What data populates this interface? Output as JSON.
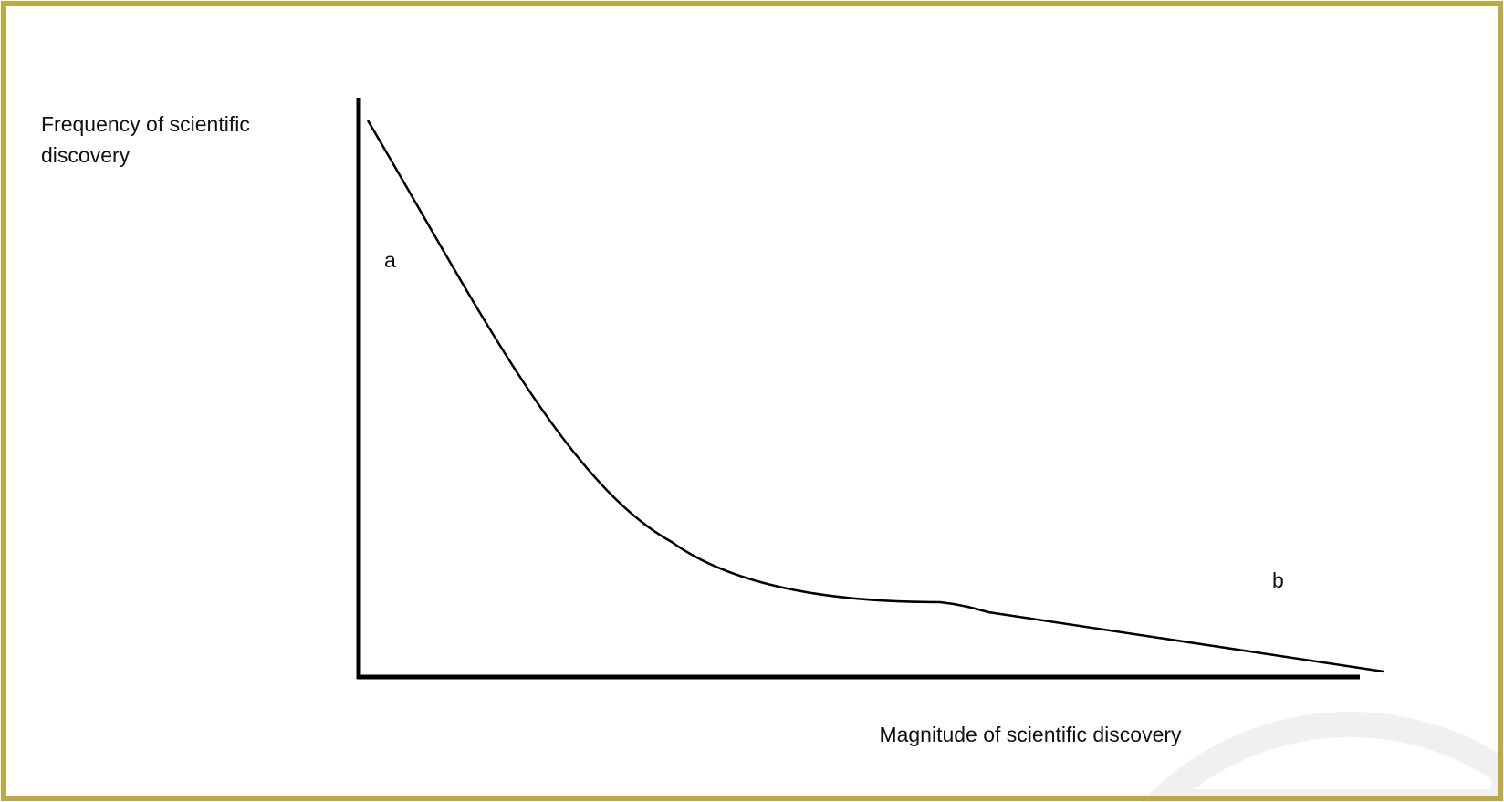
{
  "y_axis_label": [
    "Frequency of scientific",
    "discovery"
  ],
  "x_axis_label": "Magnitude of scientific discovery",
  "curve_labels": [
    "a",
    "b"
  ]
}
